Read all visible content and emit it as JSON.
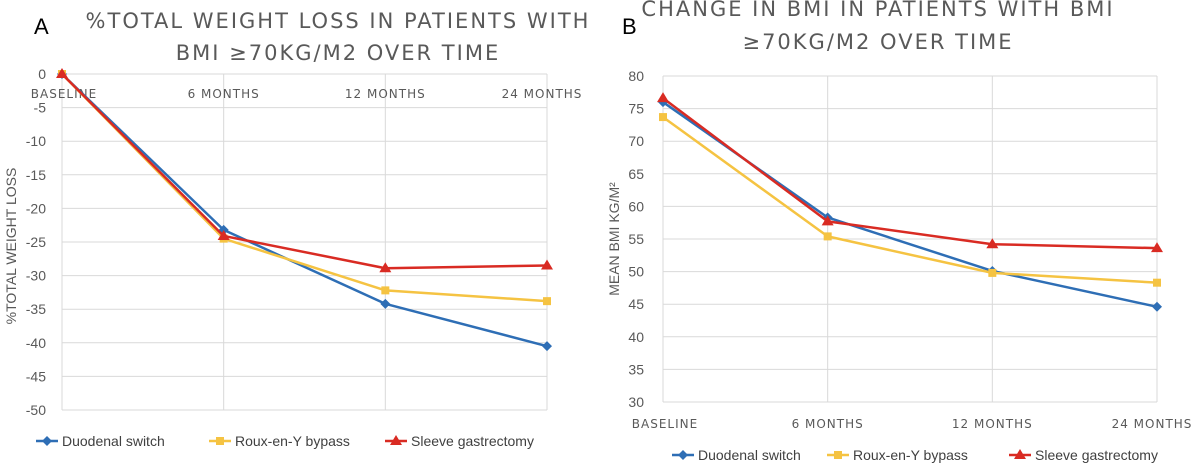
{
  "chart_data": [
    {
      "type": "line",
      "panel": "A",
      "title_lines": [
        "%TOTAL WEIGHT LOSS IN PATIENTS WITH",
        "BMI ≥70KG/M2 OVER TIME"
      ],
      "ylabel": "%TOTAL WEIGHT LOSS",
      "categories": [
        "BASELINE",
        "6 MONTHS",
        "12 MONTHS",
        "24 MONTHS"
      ],
      "ylim": [
        -50,
        0
      ],
      "ystep": 5,
      "yticks": [
        "0",
        "-5",
        "-10",
        "-15",
        "-20",
        "-25",
        "-30",
        "-35",
        "-40",
        "-45",
        "-50"
      ],
      "xaxis_position": "top",
      "series": [
        {
          "name": "Duodenal switch",
          "color": "#2e6eb5",
          "marker": "diamond",
          "values": [
            0,
            -23.2,
            -34.2,
            -40.5
          ]
        },
        {
          "name": "Roux-en-Y bypass",
          "color": "#f5c342",
          "marker": "square",
          "values": [
            0,
            -24.5,
            -32.2,
            -33.8
          ]
        },
        {
          "name": "Sleeve gastrectomy",
          "color": "#d92b23",
          "marker": "triangle",
          "values": [
            0,
            -24.1,
            -28.9,
            -28.5
          ]
        }
      ]
    },
    {
      "type": "line",
      "panel": "B",
      "title_lines": [
        "CHANGE IN BMI IN PATIENTS WITH BMI",
        "≥70KG/M2 OVER TIME"
      ],
      "ylabel": "MEAN BMI KG/M²",
      "categories": [
        "BASELINE",
        "6 MONTHS",
        "12 MONTHS",
        "24 MONTHS"
      ],
      "ylim": [
        30,
        80
      ],
      "ystep": 5,
      "yticks": [
        "80",
        "75",
        "70",
        "65",
        "60",
        "55",
        "50",
        "45",
        "40",
        "35",
        "30"
      ],
      "xaxis_position": "bottom",
      "series": [
        {
          "name": "Duodenal switch",
          "color": "#2e6eb5",
          "marker": "diamond",
          "values": [
            76.0,
            58.3,
            50.1,
            44.6
          ]
        },
        {
          "name": "Roux-en-Y bypass",
          "color": "#f5c342",
          "marker": "square",
          "values": [
            73.7,
            55.4,
            49.8,
            48.3
          ]
        },
        {
          "name": "Sleeve gastrectomy",
          "color": "#d92b23",
          "marker": "triangle",
          "values": [
            76.6,
            57.7,
            54.2,
            53.6
          ]
        }
      ]
    }
  ]
}
